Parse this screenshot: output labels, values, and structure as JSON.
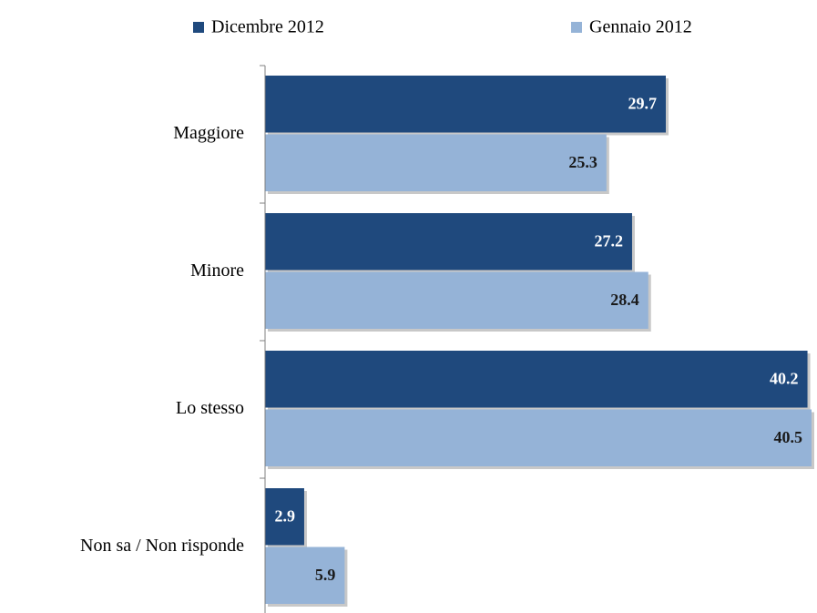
{
  "chart_data": {
    "type": "bar",
    "orientation": "horizontal",
    "categories": [
      "Maggiore",
      "Minore",
      "Lo stesso",
      "Non sa / Non risponde"
    ],
    "series": [
      {
        "name": "Dicembre 2012",
        "color": "#1f497d",
        "values": [
          29.7,
          27.2,
          40.2,
          2.9
        ]
      },
      {
        "name": "Gennaio 2012",
        "color": "#95b3d7",
        "values": [
          25.3,
          28.4,
          40.5,
          5.9
        ]
      }
    ],
    "legend": "top",
    "grid": false
  }
}
